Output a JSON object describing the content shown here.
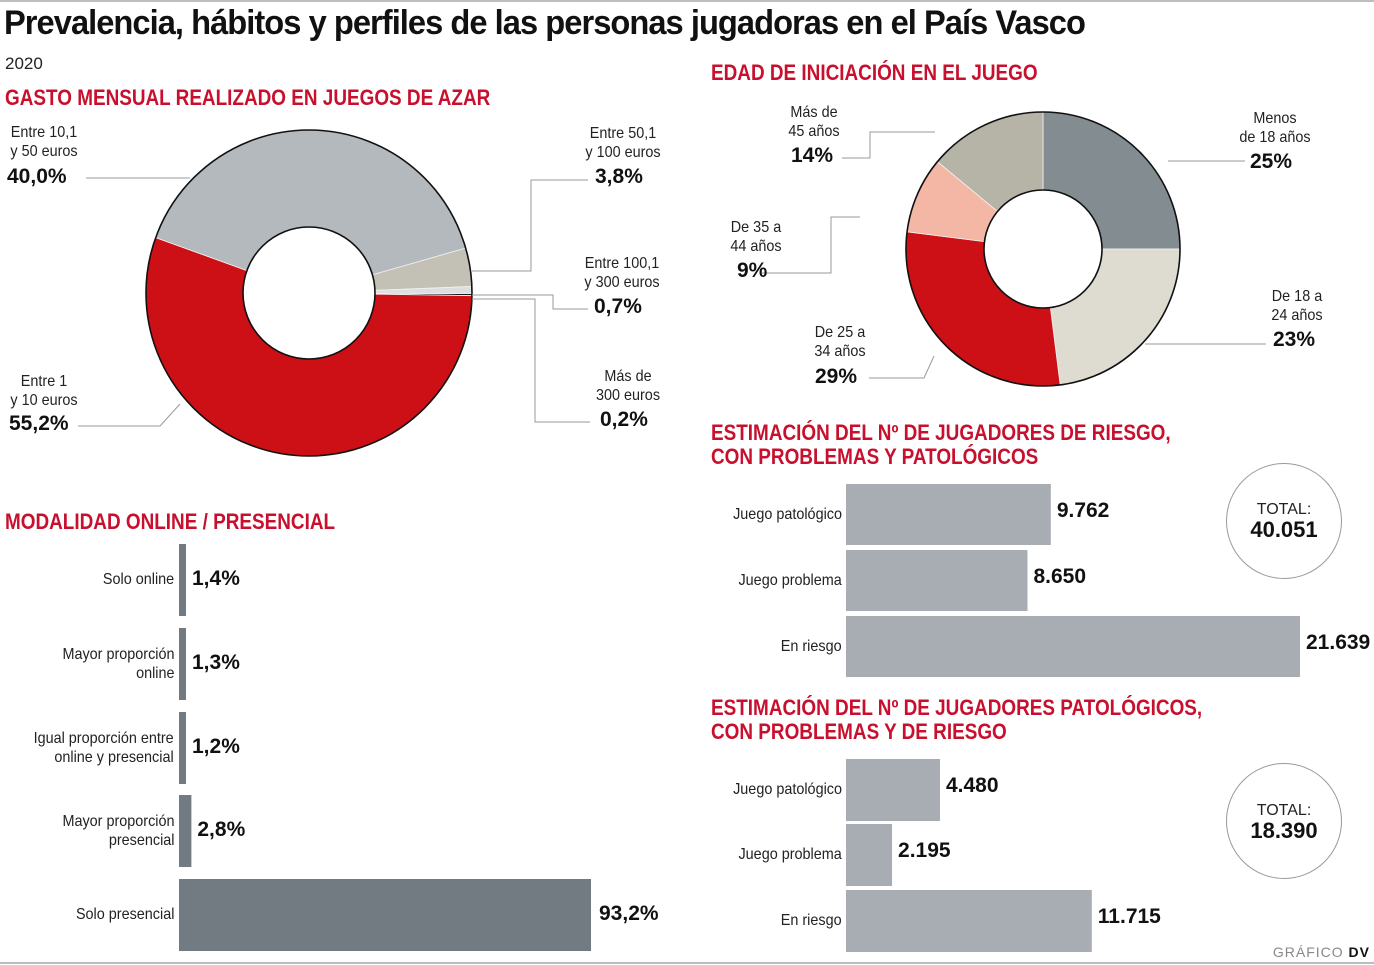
{
  "header": {
    "title": "Prevalencia, hábitos y perfiles de las personas jugadoras en el País Vasco",
    "year": "2020"
  },
  "credit": {
    "prefix": "GRÁFICO",
    "brand": "DV"
  },
  "colors": {
    "accent_red": "#c8102e",
    "bar_gray": "#a7adb2",
    "bar_dark": "#727b81"
  },
  "chart_data": [
    {
      "type": "pie",
      "donut": true,
      "title": "GASTO MENSUAL REALIZADO EN JUEGOS DE AZAR",
      "slices": [
        {
          "label_line1": "Más de",
          "label_line2": "300 euros",
          "value": 0.2,
          "display": "0,2%",
          "color": "#1a1a1a"
        },
        {
          "label_line1": "Entre 1",
          "label_line2": "y 10 euros",
          "value": 55.2,
          "display": "55,2%",
          "color": "#cc1016"
        },
        {
          "label_line1": "Entre 10,1",
          "label_line2": "y 50 euros",
          "value": 40.0,
          "display": "40,0%",
          "color": "#b3b9bd"
        },
        {
          "label_line1": "Entre 50,1",
          "label_line2": "y 100 euros",
          "value": 3.8,
          "display": "3,8%",
          "color": "#c3c1b6"
        },
        {
          "label_line1": "Entre 100,1",
          "label_line2": "y 300 euros",
          "value": 0.7,
          "display": "0,7%",
          "color": "#dcdedf"
        }
      ]
    },
    {
      "type": "pie",
      "donut": true,
      "title": "EDAD DE INICIACIÓN EN EL JUEGO",
      "slices": [
        {
          "label_line1": "Menos",
          "label_line2": "de 18 años",
          "value": 25,
          "display": "25%",
          "color": "#838c90"
        },
        {
          "label_line1": "De 18 a",
          "label_line2": "24 años",
          "value": 23,
          "display": "23%",
          "color": "#dedcd0"
        },
        {
          "label_line1": "De 25 a",
          "label_line2": "34 años",
          "value": 29,
          "display": "29%",
          "color": "#cc1016"
        },
        {
          "label_line1": "De 35 a",
          "label_line2": "44 años",
          "value": 9,
          "display": "9%",
          "color": "#f5b7a5"
        },
        {
          "label_line1": "Más de",
          "label_line2": "45 años",
          "value": 14,
          "display": "14%",
          "color": "#b6b3a7"
        }
      ]
    },
    {
      "type": "bar",
      "orientation": "horizontal",
      "title": "MODALIDAD ONLINE / PRESENCIAL",
      "unit": "%",
      "xlim": [
        0,
        100
      ],
      "categories": [
        {
          "line1": "Solo online",
          "line2": ""
        },
        {
          "line1": "Mayor proporción",
          "line2": "online"
        },
        {
          "line1": "Igual proporción entre",
          "line2": "online y presencial"
        },
        {
          "line1": "Mayor proporción",
          "line2": "presencial"
        },
        {
          "line1": "Solo presencial",
          "line2": ""
        }
      ],
      "values": [
        1.4,
        1.3,
        1.2,
        2.8,
        93.2
      ],
      "display": [
        "1,4%",
        "1,3%",
        "1,2%",
        "2,8%",
        "93,2%"
      ]
    },
    {
      "type": "bar",
      "orientation": "horizontal",
      "title_line1": "ESTIMACIÓN DEL Nº DE JUGADORES DE RIESGO,",
      "title_line2": "CON PROBLEMAS Y PATOLÓGICOS",
      "categories": [
        "Juego patológico",
        "Juego problema",
        "En riesgo"
      ],
      "values": [
        9762,
        8650,
        21639
      ],
      "display": [
        "9.762",
        "8.650",
        "21.639"
      ],
      "total_label": "TOTAL:",
      "total": "40.051"
    },
    {
      "type": "bar",
      "orientation": "horizontal",
      "title_line1": "ESTIMACIÓN DEL Nº DE JUGADORES PATOLÓGICOS,",
      "title_line2": "CON PROBLEMAS Y DE RIESGO",
      "categories": [
        "Juego patológico",
        "Juego problema",
        "En riesgo"
      ],
      "values": [
        4480,
        2195,
        11715
      ],
      "display": [
        "4.480",
        "2.195",
        "11.715"
      ],
      "total_label": "TOTAL:",
      "total": "18.390"
    }
  ]
}
